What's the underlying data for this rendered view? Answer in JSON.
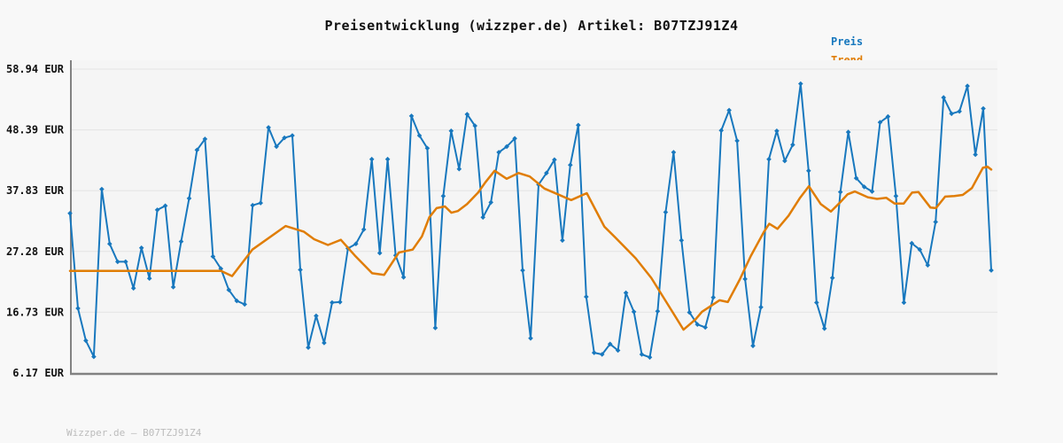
{
  "title": "Preisentwicklung (wizzper.de) Artikel: B07TZJ91Z4",
  "legend": {
    "preis_label": "Preis",
    "trend_label": "Trend"
  },
  "footer_watermark": "Wizzper.de – B07TZJ91Z4",
  "colors": {
    "preis": "#1878be",
    "trend": "#e07d05",
    "page_bg": "#f8f8f8",
    "plot_bg": "#f5f5f5",
    "grid": "#e3e3e3",
    "axis": "#828282",
    "title_text": "#111111",
    "footer_text": "#bcbcbc"
  },
  "chart_data": {
    "type": "line",
    "title": "Preisentwicklung (wizzper.de) Artikel: B07TZJ91Z4",
    "xlabel": "",
    "ylabel": "EUR",
    "ylim": [
      6.17,
      58.94
    ],
    "grid": true,
    "legend_position": "top-right",
    "x_axis_labels": [],
    "y_ticks": [
      {
        "label": "58.94 EUR",
        "value": 58.94
      },
      {
        "label": "48.39 EUR",
        "value": 48.39
      },
      {
        "label": "37.83 EUR",
        "value": 37.83
      },
      {
        "label": "27.28 EUR",
        "value": 27.28
      },
      {
        "label": "16.73 EUR",
        "value": 16.73
      },
      {
        "label": "6.17 EUR",
        "value": 6.17
      }
    ],
    "series": [
      {
        "name": "Preis",
        "color": "#1878be",
        "markers": "diamond",
        "values": [
          33.9,
          17.4,
          11.8,
          9.0,
          38.1,
          28.6,
          25.5,
          25.5,
          20.9,
          27.9,
          22.6,
          34.5,
          35.2,
          21.1,
          29.0,
          36.5,
          44.9,
          46.8,
          26.4,
          24.3,
          20.6,
          18.7,
          18.1,
          35.3,
          35.7,
          48.8,
          45.5,
          47.0,
          47.4,
          24.1,
          10.6,
          16.1,
          11.4,
          18.4,
          18.5,
          27.8,
          28.6,
          31.1,
          43.3,
          27.0,
          43.3,
          26.6,
          22.8,
          50.8,
          47.4,
          45.2,
          14.0,
          36.9,
          48.2,
          41.6,
          51.1,
          49.1,
          33.2,
          35.8,
          44.5,
          45.5,
          46.9,
          24.0,
          12.2,
          38.9,
          40.9,
          43.2,
          29.2,
          42.3,
          49.2,
          19.4,
          9.7,
          9.4,
          11.2,
          10.1,
          20.1,
          16.8,
          9.4,
          8.9,
          16.9,
          34.1,
          44.5,
          29.2,
          16.7,
          14.6,
          14.1,
          19.3,
          48.3,
          51.8,
          46.5,
          22.5,
          10.9,
          17.6,
          43.3,
          48.2,
          43.0,
          45.8,
          56.4,
          41.3,
          18.4,
          13.9,
          22.7,
          37.6,
          48.0,
          40.0,
          38.5,
          37.7,
          49.7,
          50.7,
          36.9,
          18.4,
          28.7,
          27.6,
          24.9,
          32.4,
          54.0,
          51.2,
          51.6,
          56.0,
          44.1,
          52.1,
          24.0
        ]
      },
      {
        "name": "Trend",
        "color": "#e07d05",
        "markers": "none",
        "points": [
          [
            0.0,
            23.9
          ],
          [
            0.073,
            23.9
          ],
          [
            0.164,
            23.9
          ],
          [
            0.176,
            23.0
          ],
          [
            0.198,
            27.6
          ],
          [
            0.234,
            31.7
          ],
          [
            0.254,
            30.7
          ],
          [
            0.265,
            29.4
          ],
          [
            0.28,
            28.4
          ],
          [
            0.294,
            29.3
          ],
          [
            0.309,
            26.6
          ],
          [
            0.328,
            23.5
          ],
          [
            0.341,
            23.2
          ],
          [
            0.357,
            27.1
          ],
          [
            0.372,
            27.6
          ],
          [
            0.382,
            29.9
          ],
          [
            0.39,
            33.2
          ],
          [
            0.398,
            34.8
          ],
          [
            0.407,
            35.1
          ],
          [
            0.414,
            34.0
          ],
          [
            0.421,
            34.3
          ],
          [
            0.431,
            35.5
          ],
          [
            0.443,
            37.5
          ],
          [
            0.451,
            39.3
          ],
          [
            0.461,
            41.3
          ],
          [
            0.474,
            39.9
          ],
          [
            0.487,
            40.9
          ],
          [
            0.499,
            40.3
          ],
          [
            0.515,
            38.2
          ],
          [
            0.544,
            36.2
          ],
          [
            0.561,
            37.4
          ],
          [
            0.58,
            31.6
          ],
          [
            0.592,
            29.7
          ],
          [
            0.614,
            26.1
          ],
          [
            0.631,
            22.7
          ],
          [
            0.65,
            17.8
          ],
          [
            0.666,
            13.7
          ],
          [
            0.679,
            15.5
          ],
          [
            0.686,
            16.8
          ],
          [
            0.705,
            18.8
          ],
          [
            0.714,
            18.5
          ],
          [
            0.727,
            22.4
          ],
          [
            0.739,
            26.5
          ],
          [
            0.753,
            30.6
          ],
          [
            0.759,
            32.1
          ],
          [
            0.768,
            31.2
          ],
          [
            0.78,
            33.5
          ],
          [
            0.792,
            36.5
          ],
          [
            0.802,
            38.6
          ],
          [
            0.815,
            35.5
          ],
          [
            0.826,
            34.2
          ],
          [
            0.836,
            35.8
          ],
          [
            0.844,
            37.2
          ],
          [
            0.852,
            37.7
          ],
          [
            0.866,
            36.7
          ],
          [
            0.876,
            36.4
          ],
          [
            0.886,
            36.6
          ],
          [
            0.895,
            35.6
          ],
          [
            0.905,
            35.6
          ],
          [
            0.914,
            37.5
          ],
          [
            0.921,
            37.6
          ],
          [
            0.934,
            34.9
          ],
          [
            0.94,
            34.8
          ],
          [
            0.95,
            36.8
          ],
          [
            0.96,
            36.9
          ],
          [
            0.969,
            37.1
          ],
          [
            0.979,
            38.3
          ],
          [
            0.991,
            41.8
          ],
          [
            0.996,
            42.0
          ],
          [
            1.0,
            41.5
          ]
        ]
      }
    ]
  }
}
